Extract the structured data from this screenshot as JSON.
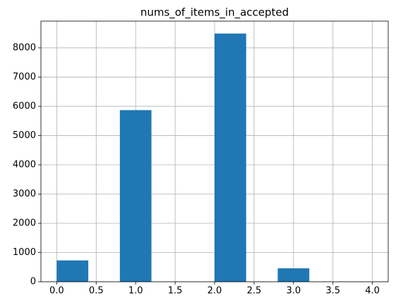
{
  "chart_data": {
    "type": "histogram",
    "title": "nums_of_items_in_accepted",
    "bins": [
      0,
      0.4,
      0.8,
      1.2,
      1.6,
      2,
      2.4,
      2.8,
      3.2,
      3.6,
      4
    ],
    "values": [
      730,
      0,
      5870,
      0,
      0,
      8490,
      0,
      460,
      0,
      0
    ],
    "color": "#1f77b4",
    "xlim": [
      -0.2,
      4.2
    ],
    "xticks": [
      {
        "value": 0,
        "label": "0.0"
      },
      {
        "value": 0.5,
        "label": "0.5"
      },
      {
        "value": 1,
        "label": "1.0"
      },
      {
        "value": 1.5,
        "label": "1.5"
      },
      {
        "value": 2,
        "label": "2.0"
      },
      {
        "value": 2.5,
        "label": "2.5"
      },
      {
        "value": 3,
        "label": "3.0"
      },
      {
        "value": 3.5,
        "label": "3.5"
      },
      {
        "value": 4,
        "label": "4.0"
      }
    ],
    "ylim": [
      0,
      8914
    ],
    "yticks": [
      0,
      1000,
      2000,
      3000,
      4000,
      5000,
      6000,
      7000,
      8000
    ],
    "grid": true
  }
}
